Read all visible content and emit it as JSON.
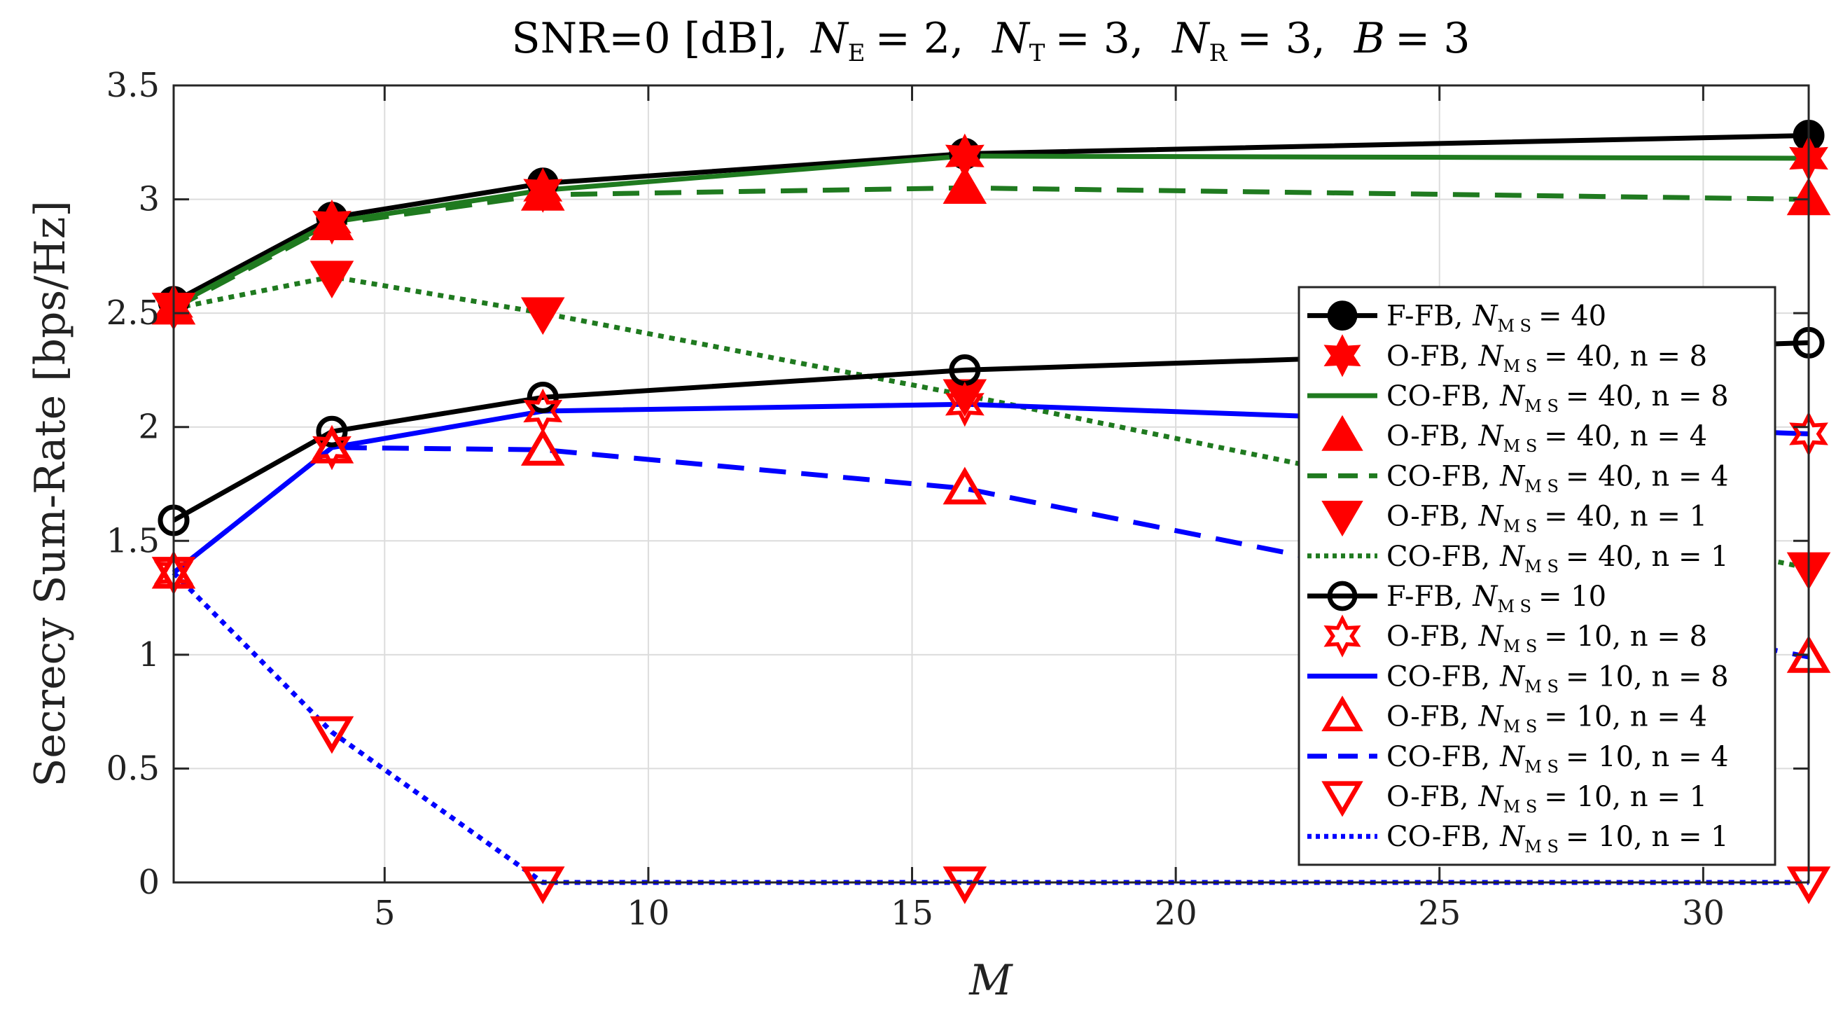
{
  "chart_data": {
    "type": "line",
    "title": "SNR=0 [dB], N_E = 2, N_T = 3, N_R = 3, B = 3",
    "title_parts": {
      "prefix": "SNR=0 [dB],",
      "ne_sym": "N",
      "ne_sub": "E",
      "ne_val": "= 2,",
      "nt_sym": "N",
      "nt_sub": "T",
      "nt_val": "= 3,",
      "nr_sym": "N",
      "nr_sub": "R",
      "nr_val": "= 3,",
      "b_sym": "B",
      "b_val": "= 3"
    },
    "xlabel": "M",
    "ylabel": "Secrecy Sum-Rate [bps/Hz]",
    "xlim": [
      1,
      32
    ],
    "ylim": [
      0,
      3.5
    ],
    "xticks": [
      5,
      10,
      15,
      20,
      25,
      30
    ],
    "yticks": [
      0,
      0.5,
      1,
      1.5,
      2,
      2.5,
      3,
      3.5
    ],
    "ytick_labels": [
      "0",
      "0.5",
      "1",
      "1.5",
      "2",
      "2.5",
      "3",
      "3.5"
    ],
    "grid": true,
    "legend_position": "right-center",
    "x": [
      1,
      4,
      8,
      16,
      32
    ],
    "series": [
      {
        "name": "F-FB, N_MS = 40",
        "legend": {
          "pre": "F-FB,",
          "sub": "M S",
          "post": "= 40"
        },
        "values": [
          2.55,
          2.92,
          3.07,
          3.2,
          3.28
        ],
        "color": "#000000",
        "line": "solid",
        "marker": "circle-filled"
      },
      {
        "name": "O-FB, N_MS = 40, n = 8",
        "legend": {
          "pre": "O-FB,",
          "sub": "M S",
          "post": "= 40, n = 8"
        },
        "values": [
          2.53,
          2.9,
          3.04,
          3.19,
          3.18
        ],
        "color": "#ff0000",
        "line": "none",
        "marker": "hexagram-filled"
      },
      {
        "name": "CO-FB, N_MS = 40, n = 8",
        "legend": {
          "pre": "CO-FB,",
          "sub": "M S",
          "post": "= 40, n = 8"
        },
        "values": [
          2.53,
          2.9,
          3.04,
          3.19,
          3.18
        ],
        "color": "#1f7a1f",
        "line": "solid",
        "marker": "none"
      },
      {
        "name": "O-FB, N_MS = 40, n = 4",
        "legend": {
          "pre": "O-FB,",
          "sub": "M S",
          "post": "= 40, n = 4"
        },
        "values": [
          2.52,
          2.89,
          3.02,
          3.05,
          3.0
        ],
        "color": "#ff0000",
        "line": "none",
        "marker": "triangle-up-filled"
      },
      {
        "name": "CO-FB, N_MS = 40, n = 4",
        "legend": {
          "pre": "CO-FB,",
          "sub": "M S",
          "post": "= 40, n = 4"
        },
        "values": [
          2.52,
          2.89,
          3.02,
          3.05,
          3.0
        ],
        "color": "#1f7a1f",
        "line": "dashed",
        "marker": "none"
      },
      {
        "name": "O-FB, N_MS = 40, n = 1",
        "legend": {
          "pre": "O-FB,",
          "sub": "M S",
          "post": "= 40, n = 1"
        },
        "values": [
          2.52,
          2.66,
          2.5,
          2.14,
          1.38
        ],
        "color": "#ff0000",
        "line": "none",
        "marker": "triangle-down-filled"
      },
      {
        "name": "CO-FB, N_MS = 40, n = 1",
        "legend": {
          "pre": "CO-FB,",
          "sub": "M S",
          "post": "= 40, n = 1"
        },
        "values": [
          2.52,
          2.66,
          2.5,
          2.14,
          1.38
        ],
        "color": "#1f7a1f",
        "line": "dotted",
        "marker": "none"
      },
      {
        "name": "F-FB, N_MS = 10",
        "legend": {
          "pre": "F-FB,",
          "sub": "M S",
          "post": "= 10"
        },
        "values": [
          1.59,
          1.98,
          2.13,
          2.25,
          2.37
        ],
        "color": "#000000",
        "line": "solid",
        "marker": "circle-open"
      },
      {
        "name": "O-FB, N_MS = 10, n = 8",
        "legend": {
          "pre": "O-FB,",
          "sub": "M S",
          "post": "= 10, n = 8"
        },
        "values": [
          1.36,
          1.91,
          2.07,
          2.1,
          1.97
        ],
        "color": "#ff0000",
        "line": "none",
        "marker": "hexagram-open"
      },
      {
        "name": "CO-FB, N_MS = 10, n = 8",
        "legend": {
          "pre": "CO-FB,",
          "sub": "M S",
          "post": "= 10, n = 8"
        },
        "values": [
          1.36,
          1.91,
          2.07,
          2.1,
          1.97
        ],
        "color": "#0000ff",
        "line": "solid",
        "marker": "none"
      },
      {
        "name": "O-FB, N_MS = 10, n = 4",
        "legend": {
          "pre": "O-FB,",
          "sub": "M S",
          "post": "= 10, n = 4"
        },
        "values": [
          1.36,
          1.91,
          1.9,
          1.73,
          0.99
        ],
        "color": "#ff0000",
        "line": "none",
        "marker": "triangle-up-open"
      },
      {
        "name": "CO-FB, N_MS = 10, n = 4",
        "legend": {
          "pre": "CO-FB,",
          "sub": "M S",
          "post": "= 10, n = 4"
        },
        "values": [
          1.36,
          1.91,
          1.9,
          1.73,
          0.99
        ],
        "color": "#0000ff",
        "line": "dashed",
        "marker": "none"
      },
      {
        "name": "O-FB, N_MS = 10, n = 1",
        "legend": {
          "pre": "O-FB,",
          "sub": "M S",
          "post": "= 10, n = 1"
        },
        "values": [
          1.36,
          0.66,
          0.0,
          0.0,
          0.0
        ],
        "color": "#ff0000",
        "line": "none",
        "marker": "triangle-down-open"
      },
      {
        "name": "CO-FB, N_MS = 10, n = 1",
        "legend": {
          "pre": "CO-FB,",
          "sub": "M S",
          "post": "= 10, n = 1"
        },
        "values": [
          1.36,
          0.66,
          0.0,
          0.0,
          0.0
        ],
        "color": "#0000ff",
        "line": "dotted",
        "marker": "none"
      }
    ]
  }
}
